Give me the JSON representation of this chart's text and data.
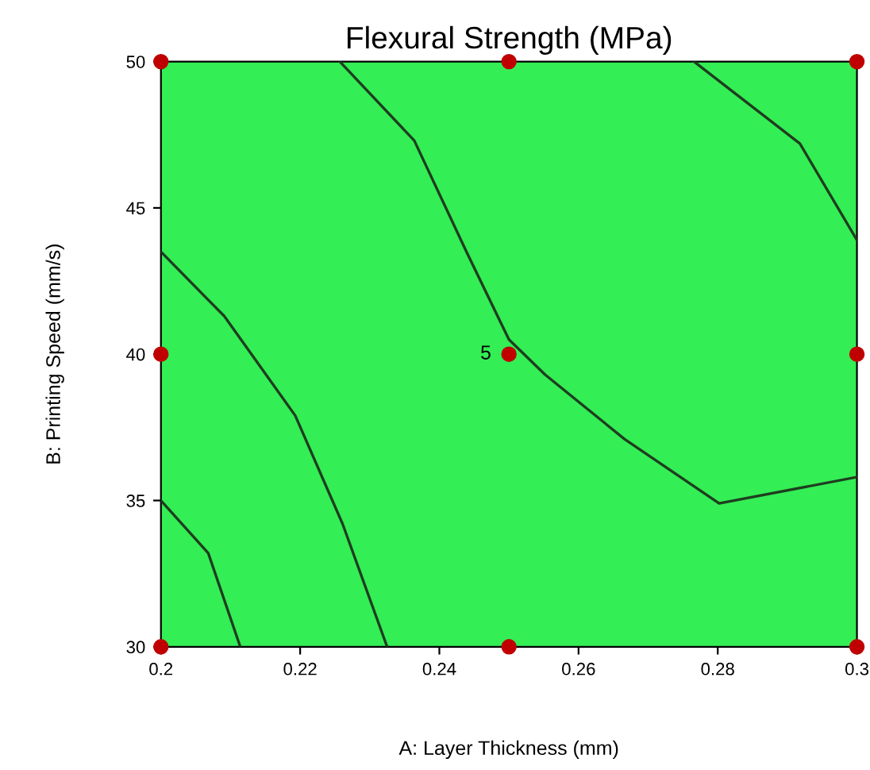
{
  "chart_data": {
    "type": "line",
    "title": "Flexural Strength (MPa)",
    "xlabel": "A: Layer Thickness (mm)",
    "ylabel": "B: Printing Speed (mm/s)",
    "xlim": [
      0.2,
      0.3
    ],
    "ylim": [
      30,
      50
    ],
    "xticks": [
      0.2,
      0.22,
      0.24,
      0.26,
      0.28,
      0.3
    ],
    "yticks": [
      30,
      35,
      40,
      45,
      50
    ],
    "grid": false,
    "series": [
      {
        "type": "scatter",
        "marker": "circle",
        "color": "#c00000",
        "x": [
          0.2,
          0.2,
          0.2,
          0.25,
          0.25,
          0.25,
          0.3,
          0.3,
          0.3
        ],
        "values": [
          30,
          40,
          50,
          30,
          40,
          50,
          30,
          40,
          50
        ]
      },
      {
        "color": "#1f3d1f",
        "x": [
          0.2,
          0.2068,
          0.2114
        ],
        "values": [
          35.0,
          33.2,
          30
        ]
      },
      {
        "color": "#1f3d1f",
        "x": [
          0.2,
          0.2091,
          0.2193,
          0.2261,
          0.2325
        ],
        "values": [
          43.5,
          41.3,
          37.9,
          34.2,
          30
        ]
      },
      {
        "color": "#1f3d1f",
        "x": [
          0.2257,
          0.2364,
          0.2439,
          0.25,
          0.2552,
          0.2666,
          0.2802,
          0.3
        ],
        "values": [
          50,
          47.3,
          43.5,
          40.5,
          39.3,
          37.1,
          34.9,
          35.8
        ]
      },
      {
        "color": "#1f3d1f",
        "x": [
          0.2766,
          0.2918,
          0.3
        ],
        "values": [
          50,
          47.2,
          43.9
        ]
      }
    ],
    "annotations": [
      {
        "text": "5",
        "x": 0.25,
        "y": 40
      }
    ]
  }
}
